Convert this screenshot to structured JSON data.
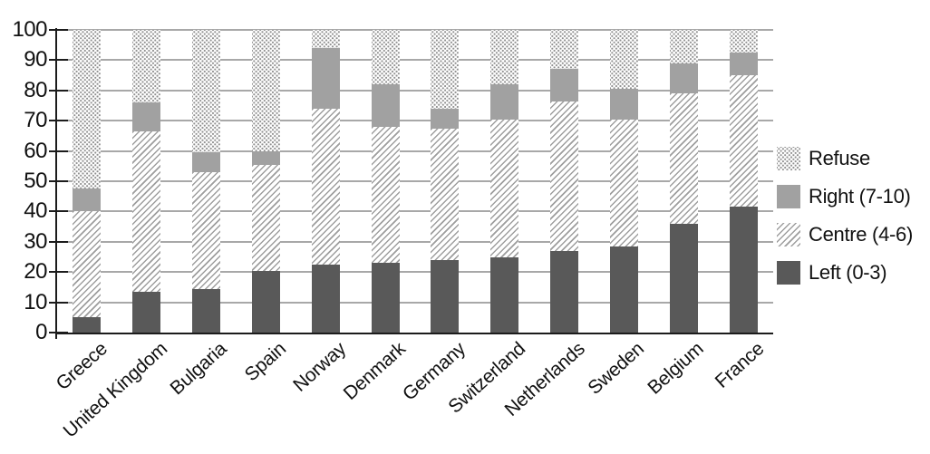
{
  "chart_data": {
    "type": "bar",
    "subtype": "stacked-percent",
    "title": "",
    "xlabel": "",
    "ylabel": "",
    "ylim": [
      0,
      100
    ],
    "ytick_step": 10,
    "yticks": [
      0,
      10,
      20,
      30,
      40,
      50,
      60,
      70,
      80,
      90,
      100
    ],
    "grid": true,
    "legend_position": "right",
    "categories": [
      "Greece",
      "United Kingdom",
      "Bulgaria",
      "Spain",
      "Norway",
      "Denmark",
      "Germany",
      "Switzerland",
      "Netherlands",
      "Sweden",
      "Belgium",
      "France"
    ],
    "series": [
      {
        "name": "Left (0-3)",
        "key": "left",
        "values": [
          5,
          13.5,
          14.5,
          20.5,
          22.5,
          23,
          24,
          25,
          27,
          28.5,
          36,
          41.5
        ]
      },
      {
        "name": "Centre (4-6)",
        "key": "centre",
        "values": [
          35,
          53,
          38.5,
          35,
          51.5,
          45,
          43.5,
          45.5,
          49.5,
          42,
          43,
          43.5
        ]
      },
      {
        "name": "Right (7-10)",
        "key": "right",
        "values": [
          7.5,
          9.5,
          6.5,
          4.5,
          20,
          14,
          6.5,
          11.5,
          10.5,
          10,
          10,
          7.5
        ]
      },
      {
        "name": "Refuse",
        "key": "refuse",
        "values": [
          52.5,
          24,
          40.5,
          40,
          6,
          18,
          26,
          18,
          13,
          19.5,
          11,
          7.5
        ]
      }
    ],
    "legend": {
      "items": [
        {
          "label": "Refuse",
          "key": "refuse"
        },
        {
          "label": "Right (7-10)",
          "key": "right"
        },
        {
          "label": "Centre (4-6)",
          "key": "centre"
        },
        {
          "label": "Left (0-3)",
          "key": "left"
        }
      ]
    },
    "colors": {
      "left_fill": "#595959",
      "right_fill": "#a1a1a1",
      "centre_hatch_line": "#9e9e9e",
      "refuse_dot": "#8f8f8f",
      "gridline": "#a8a8a8",
      "axis": "#1c1c1c",
      "text": "#111111"
    }
  }
}
